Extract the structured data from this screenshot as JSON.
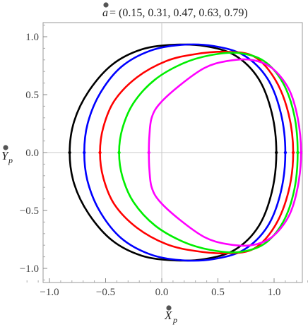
{
  "chart_data": {
    "type": "line",
    "title_parts": {
      "var": "a",
      "rest": " = (0.15, 0.31, 0.47, 0.63, 0.79)"
    },
    "xlabel": {
      "main": "X",
      "sub": "p"
    },
    "ylabel": {
      "main": "Y",
      "sub": "p"
    },
    "xlim": [
      -1.2,
      1.3
    ],
    "ylim": [
      -1.1,
      1.1
    ],
    "xticks": [
      -1.0,
      -0.5,
      0.0,
      0.5,
      1.0
    ],
    "xtick_labels": [
      "−1.0",
      "−0.5",
      "0.0",
      "0.5",
      "1.0"
    ],
    "yticks": [
      1.0,
      0.5,
      0.0,
      -0.5,
      -1.0
    ],
    "ytick_labels": [
      "1.0",
      "0.5",
      "0.0",
      "−0.5",
      "−1.0"
    ],
    "gridlines": "axes-through-origin",
    "series": [
      {
        "color": "#000000",
        "points": [
          [
            1.02,
            0
          ],
          [
            0.98,
            0.34
          ],
          [
            0.86,
            0.64
          ],
          [
            0.65,
            0.84
          ],
          [
            0.38,
            0.92
          ],
          [
            0.1,
            0.93
          ],
          [
            -0.18,
            0.89
          ],
          [
            -0.44,
            0.76
          ],
          [
            -0.65,
            0.53
          ],
          [
            -0.78,
            0.27
          ],
          [
            -0.82,
            0
          ],
          [
            -0.78,
            -0.27
          ],
          [
            -0.65,
            -0.53
          ],
          [
            -0.44,
            -0.76
          ],
          [
            -0.18,
            -0.89
          ],
          [
            0.1,
            -0.93
          ],
          [
            0.38,
            -0.92
          ],
          [
            0.65,
            -0.84
          ],
          [
            0.86,
            -0.64
          ],
          [
            0.98,
            -0.34
          ]
        ]
      },
      {
        "color": "#0000ff",
        "points": [
          [
            1.1,
            0
          ],
          [
            1.06,
            0.34
          ],
          [
            0.94,
            0.64
          ],
          [
            0.73,
            0.84
          ],
          [
            0.46,
            0.92
          ],
          [
            0.18,
            0.93
          ],
          [
            -0.1,
            0.88
          ],
          [
            -0.36,
            0.74
          ],
          [
            -0.55,
            0.51
          ],
          [
            -0.66,
            0.25
          ],
          [
            -0.69,
            0
          ],
          [
            -0.66,
            -0.25
          ],
          [
            -0.55,
            -0.51
          ],
          [
            -0.36,
            -0.74
          ],
          [
            -0.1,
            -0.88
          ],
          [
            0.18,
            -0.93
          ],
          [
            0.46,
            -0.92
          ],
          [
            0.73,
            -0.84
          ],
          [
            0.94,
            -0.64
          ],
          [
            1.06,
            -0.34
          ]
        ]
      },
      {
        "color": "#ff0000",
        "points": [
          [
            1.17,
            0
          ],
          [
            1.13,
            0.33
          ],
          [
            1.01,
            0.63
          ],
          [
            0.82,
            0.83
          ],
          [
            0.57,
            0.87
          ],
          [
            0.3,
            0.85
          ],
          [
            0.04,
            0.79
          ],
          [
            -0.22,
            0.65
          ],
          [
            -0.42,
            0.45
          ],
          [
            -0.52,
            0.22
          ],
          [
            -0.55,
            0
          ],
          [
            -0.52,
            -0.22
          ],
          [
            -0.42,
            -0.45
          ],
          [
            -0.22,
            -0.65
          ],
          [
            0.04,
            -0.79
          ],
          [
            0.3,
            -0.85
          ],
          [
            0.57,
            -0.87
          ],
          [
            0.82,
            -0.83
          ],
          [
            1.01,
            -0.63
          ],
          [
            1.13,
            -0.33
          ]
        ]
      },
      {
        "color": "#00ee00",
        "points": [
          [
            1.21,
            0
          ],
          [
            1.18,
            0.32
          ],
          [
            1.08,
            0.6
          ],
          [
            0.91,
            0.79
          ],
          [
            0.68,
            0.86
          ],
          [
            0.43,
            0.84
          ],
          [
            0.19,
            0.77
          ],
          [
            -0.06,
            0.63
          ],
          [
            -0.25,
            0.43
          ],
          [
            -0.35,
            0.21
          ],
          [
            -0.38,
            0
          ],
          [
            -0.35,
            -0.21
          ],
          [
            -0.25,
            -0.43
          ],
          [
            -0.06,
            -0.63
          ],
          [
            0.19,
            -0.77
          ],
          [
            0.43,
            -0.84
          ],
          [
            0.68,
            -0.86
          ],
          [
            0.91,
            -0.79
          ],
          [
            1.08,
            -0.6
          ],
          [
            1.18,
            -0.32
          ]
        ]
      },
      {
        "color": "#ff00ff",
        "points": [
          [
            1.24,
            0
          ],
          [
            1.21,
            0.3
          ],
          [
            1.13,
            0.55
          ],
          [
            0.98,
            0.73
          ],
          [
            0.8,
            0.8
          ],
          [
            0.58,
            0.79
          ],
          [
            0.38,
            0.73
          ],
          [
            0.16,
            0.58
          ],
          [
            -0.02,
            0.42
          ],
          [
            -0.09,
            0.3
          ],
          [
            -0.11,
            0.15
          ],
          [
            -0.115,
            0
          ],
          [
            -0.11,
            -0.15
          ],
          [
            -0.09,
            -0.3
          ],
          [
            -0.02,
            -0.42
          ],
          [
            0.16,
            -0.58
          ],
          [
            0.38,
            -0.73
          ],
          [
            0.58,
            -0.79
          ],
          [
            0.8,
            -0.8
          ],
          [
            0.98,
            -0.73
          ],
          [
            1.13,
            -0.55
          ],
          [
            1.21,
            -0.3
          ]
        ]
      }
    ],
    "markers": [
      {
        "x": 1.02,
        "y": 0,
        "color": "#000000"
      },
      {
        "x": -0.82,
        "y": 0,
        "color": "#000000"
      },
      {
        "x": 1.1,
        "y": 0,
        "color": "#0000ff"
      },
      {
        "x": -0.69,
        "y": 0,
        "color": "#0000ff"
      },
      {
        "x": 1.17,
        "y": 0,
        "color": "#ff0000"
      },
      {
        "x": -0.55,
        "y": 0,
        "color": "#ff0000"
      },
      {
        "x": 1.21,
        "y": 0,
        "color": "#00ee00"
      },
      {
        "x": -0.38,
        "y": 0,
        "color": "#00ee00"
      },
      {
        "x": 1.24,
        "y": 0,
        "color": "#ff00ff"
      },
      {
        "x": -0.115,
        "y": 0,
        "color": "#ff00ff"
      }
    ]
  }
}
